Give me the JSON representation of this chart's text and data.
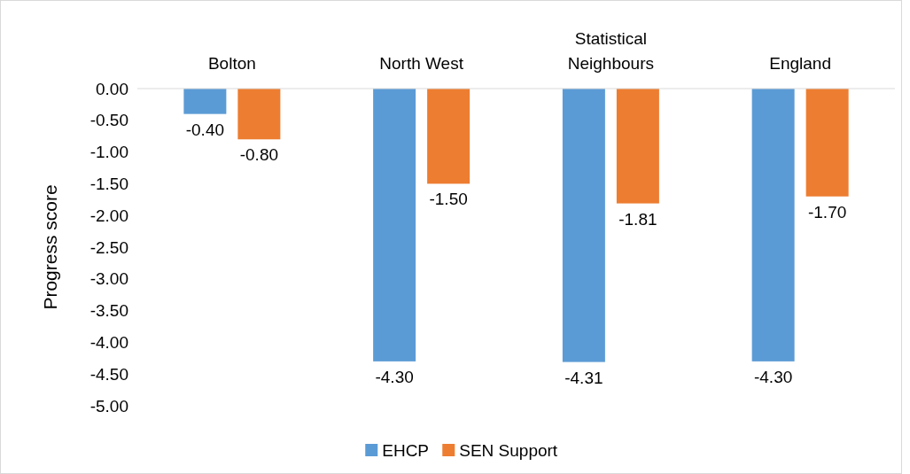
{
  "chart_data": {
    "type": "bar",
    "ylabel": "Progress score",
    "categories": [
      "Bolton",
      "North West",
      "Statistical Neighbours",
      "England"
    ],
    "series": [
      {
        "name": "EHCP",
        "color": "#5b9bd5",
        "values": [
          -0.4,
          -4.3,
          -4.31,
          -4.3
        ],
        "value_labels": [
          "-0.40",
          "-4.30",
          "-4.31",
          "-4.30"
        ]
      },
      {
        "name": "SEN Support",
        "color": "#ed7d31",
        "values": [
          -0.8,
          -1.5,
          -1.81,
          -1.7
        ],
        "value_labels": [
          "-0.80",
          "-1.50",
          "-1.81",
          "-1.70"
        ]
      }
    ],
    "ylim": [
      -5,
      0
    ],
    "yticks": [
      {
        "value": 0,
        "label": "0.00"
      },
      {
        "value": -0.5,
        "label": "-0.50"
      },
      {
        "value": -1,
        "label": "-1.00"
      },
      {
        "value": -1.5,
        "label": "-1.50"
      },
      {
        "value": -2,
        "label": "-2.00"
      },
      {
        "value": -2.5,
        "label": "-2.50"
      },
      {
        "value": -3,
        "label": "-3.00"
      },
      {
        "value": -3.5,
        "label": "-3.50"
      },
      {
        "value": -4,
        "label": "-4.00"
      },
      {
        "value": -4.5,
        "label": "-4.50"
      },
      {
        "value": -5,
        "label": "-5.00"
      }
    ],
    "grid": false,
    "legend": "bottom"
  }
}
